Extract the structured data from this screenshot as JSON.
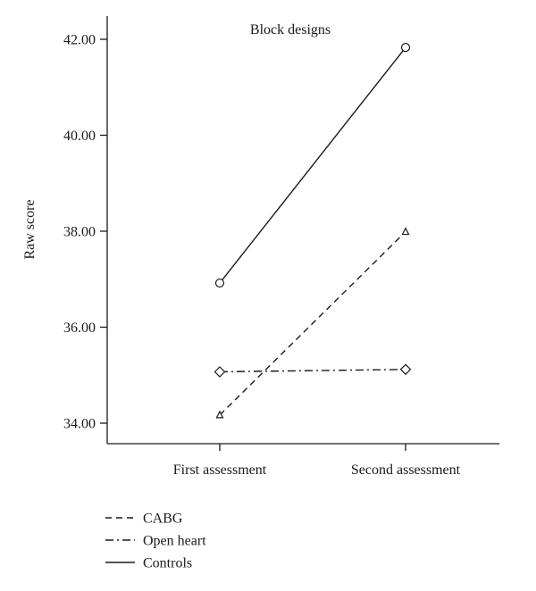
{
  "chart_data": {
    "type": "line",
    "title": "Block designs",
    "xlabel": "",
    "ylabel": "Raw score",
    "categories": [
      "First assessment",
      "Second assessment"
    ],
    "ylim": [
      33.4,
      42.5
    ],
    "yticks": [
      "34.00",
      "36.00",
      "38.00",
      "40.00",
      "42.00"
    ],
    "grid": false,
    "legend_position": "bottom-left",
    "series": [
      {
        "name": "CABG",
        "values": [
          34.17,
          37.99
        ],
        "line_style": "dashed",
        "marker": "triangle"
      },
      {
        "name": "Open heart",
        "values": [
          35.07,
          35.12
        ],
        "line_style": "dash-dot",
        "marker": "diamond"
      },
      {
        "name": "Controls",
        "values": [
          36.92,
          41.83
        ],
        "line_style": "solid",
        "marker": "circle"
      }
    ]
  }
}
